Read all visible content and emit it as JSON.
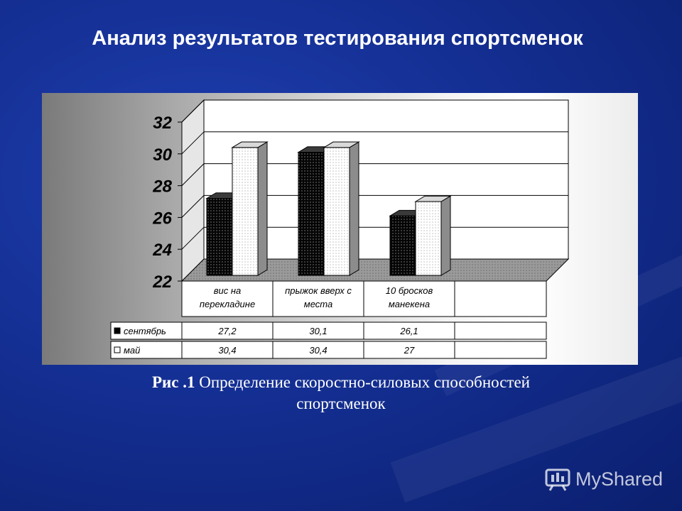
{
  "slide": {
    "title": "Анализ результатов тестирования спортсменок",
    "caption_fig": "Рис .1",
    "caption_text": "Определение скоростно-силовых способностей",
    "caption_text_line2": "спортсменок",
    "watermark": "MyShared",
    "colors": {
      "background": "#142f93",
      "title": "#ffffff",
      "series_sep": "#000000",
      "series_may": "#ffffff"
    }
  },
  "chart_data": {
    "type": "bar",
    "style": "3d-clustered-column-with-data-table",
    "categories": [
      [
        "вис на",
        "перекладине"
      ],
      [
        "прыжок вверх с",
        "места"
      ],
      [
        "10 бросков",
        "манекена"
      ]
    ],
    "series": [
      {
        "name": "сентябрь",
        "values": [
          27.2,
          30.1,
          26.1
        ],
        "labels": [
          "27,2",
          "30,1",
          "26,1"
        ],
        "color": "#000000"
      },
      {
        "name": "май",
        "values": [
          30.4,
          30.4,
          27
        ],
        "labels": [
          "30,4",
          "30,4",
          "27"
        ],
        "color": "#ffffff"
      }
    ],
    "yticks": [
      "22",
      "24",
      "26",
      "28",
      "30",
      "32"
    ],
    "ylim": [
      22,
      32
    ],
    "grid": true,
    "legend": "data-table-left"
  }
}
